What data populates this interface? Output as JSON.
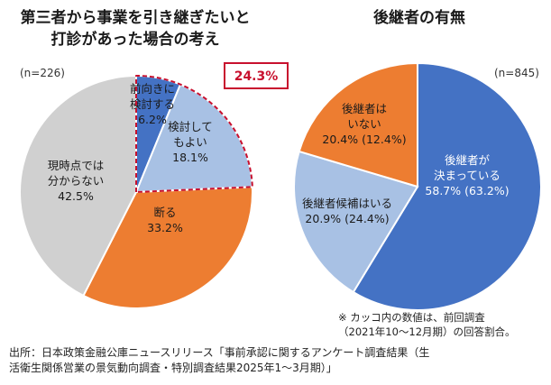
{
  "colors": {
    "blue": "#4472c4",
    "light_blue": "#a8c1e4",
    "orange": "#ed7d31",
    "gray": "#d0d0d0",
    "highlight_red": "#c8102e"
  },
  "chart_data": [
    {
      "type": "pie",
      "title": [
        "第三者から事業を引き継ぎたいと",
        "打診があった場合の考え"
      ],
      "sample": "(n=226)",
      "highlight": "24.3%",
      "slices": [
        {
          "label": [
            "前向きに",
            "検討する"
          ],
          "value_text": "6.2%",
          "value": 6.2,
          "color": "#4472c4"
        },
        {
          "label": [
            "検討して",
            "もよい"
          ],
          "value_text": "18.1%",
          "value": 18.1,
          "color": "#a8c1e4"
        },
        {
          "label": [
            "断る"
          ],
          "value_text": "33.2%",
          "value": 33.2,
          "color": "#ed7d31"
        },
        {
          "label": [
            "現時点では",
            "分からない"
          ],
          "value_text": "42.5%",
          "value": 42.5,
          "color": "#d0d0d0"
        }
      ]
    },
    {
      "type": "pie",
      "title": "後継者の有無",
      "sample": "(n=845)",
      "slices": [
        {
          "label": [
            "後継者が",
            "決まっている"
          ],
          "value_text": "58.7% (63.2%)",
          "value": 58.7,
          "previous": 63.2,
          "color": "#4472c4"
        },
        {
          "label": [
            "後継者候補はいる"
          ],
          "value_text": "20.9% (24.4%)",
          "value": 20.9,
          "previous": 24.4,
          "color": "#a8c1e4"
        },
        {
          "label": [
            "後継者は",
            "いない"
          ],
          "value_text": "20.4% (12.4%)",
          "value": 20.4,
          "previous": 12.4,
          "color": "#ed7d31"
        }
      ]
    }
  ],
  "note": [
    "※ カッコ内の数値は、前回調査",
    "（2021年10～12月期）の回答割合。"
  ],
  "source": [
    "出所：日本政策金融公庫ニュースリリース「事前承認に関するアンケート調査結果（生",
    "活衛生関係営業の景気動向調査・特別調査結果2025年1～3月期）」"
  ]
}
